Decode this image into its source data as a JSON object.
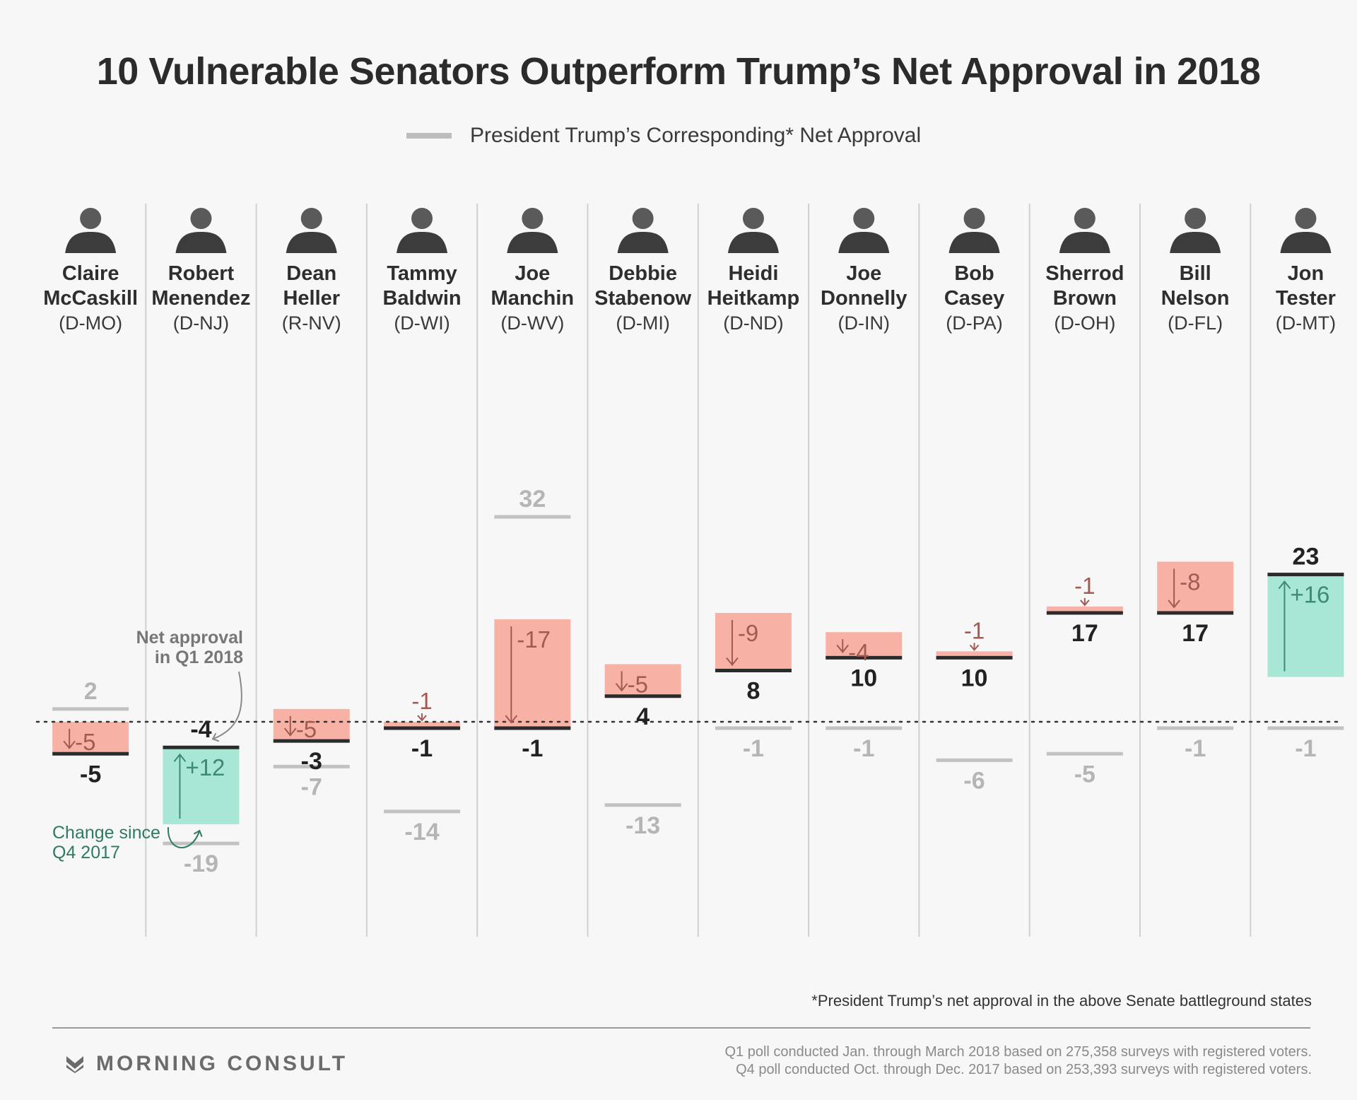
{
  "title": "10 Vulnerable Senators Outperform Trump’s Net Approval in 2018",
  "legend": {
    "label": "President Trump’s Corresponding* Net Approval"
  },
  "annotations": {
    "net_approval_line1": "Net approval",
    "net_approval_line2": "in Q1 2018",
    "change_line1": "Change since",
    "change_line2": "Q4 2017"
  },
  "footnote": "*President Trump’s net approval in the above Senate battleground states",
  "source": {
    "line1": "Q1 poll conducted Jan. through March 2018 based on 275,358 surveys with registered voters.",
    "line2": "Q4 poll conducted Oct. through Dec. 2017 based on 253,393 surveys with registered voters."
  },
  "brand": {
    "name": "MORNING CONSULT"
  },
  "colors": {
    "decrease": "#f8b2a5",
    "increase": "#a8e6d6",
    "decrease_text": "#a35a52",
    "increase_text": "#3d8a75",
    "trump_line": "#c2c2c2",
    "trump_text": "#b5b5b5",
    "senator_line": "#2b2b2b"
  },
  "chart_data": {
    "type": "bar",
    "title": "10 Vulnerable Senators Outperform Trump’s Net Approval in 2018",
    "series": [
      {
        "name": "Net approval in Q1 2018"
      },
      {
        "name": "Change since Q4 2017"
      },
      {
        "name": "President Trump’s Corresponding* Net Approval"
      }
    ],
    "senators": [
      {
        "first": "Claire",
        "last": "McCaskill",
        "party": "(D-MO)",
        "q1": -5,
        "change": -5,
        "change_label": "-5",
        "trump": 2
      },
      {
        "first": "Robert",
        "last": "Menendez",
        "party": "(D-NJ)",
        "q1": -4,
        "change": 12,
        "change_label": "+12",
        "trump": -19
      },
      {
        "first": "Dean",
        "last": "Heller",
        "party": "(R-NV)",
        "q1": -3,
        "change": -5,
        "change_label": "-5",
        "trump": -7
      },
      {
        "first": "Tammy",
        "last": "Baldwin",
        "party": "(D-WI)",
        "q1": -1,
        "change": -1,
        "change_label": "-1",
        "trump": -14
      },
      {
        "first": "Joe",
        "last": "Manchin",
        "party": "(D-WV)",
        "q1": -1,
        "change": -17,
        "change_label": "-17",
        "trump": 32
      },
      {
        "first": "Debbie",
        "last": "Stabenow",
        "party": "(D-MI)",
        "q1": 4,
        "change": -5,
        "change_label": "-5",
        "trump": -13
      },
      {
        "first": "Heidi",
        "last": "Heitkamp",
        "party": "(D-ND)",
        "q1": 8,
        "change": -9,
        "change_label": "-9",
        "trump": -1
      },
      {
        "first": "Joe",
        "last": "Donnelly",
        "party": "(D-IN)",
        "q1": 10,
        "change": -4,
        "change_label": "-4",
        "trump": -1
      },
      {
        "first": "Bob",
        "last": "Casey",
        "party": "(D-PA)",
        "q1": 10,
        "change": -1,
        "change_label": "-1",
        "trump": -6
      },
      {
        "first": "Sherrod",
        "last": "Brown",
        "party": "(D-OH)",
        "q1": 17,
        "change": -1,
        "change_label": "-1",
        "trump": -5
      },
      {
        "first": "Bill",
        "last": "Nelson",
        "party": "(D-FL)",
        "q1": 17,
        "change": -8,
        "change_label": "-8",
        "trump": -1
      },
      {
        "first": "Jon",
        "last": "Tester",
        "party": "(D-MT)",
        "q1": 23,
        "change": 16,
        "change_label": "+16",
        "trump": -1
      }
    ],
    "zero_line": "dotted",
    "legend_position": "top-center"
  }
}
